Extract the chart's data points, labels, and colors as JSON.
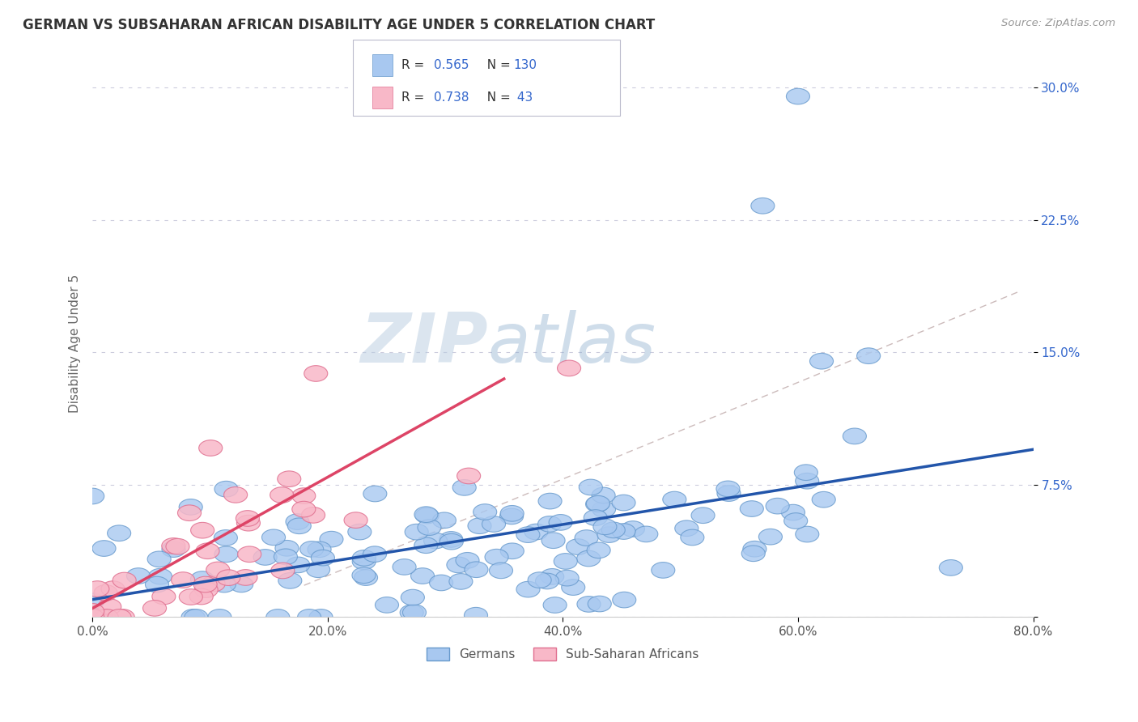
{
  "title": "GERMAN VS SUBSAHARAN AFRICAN DISABILITY AGE UNDER 5 CORRELATION CHART",
  "source": "Source: ZipAtlas.com",
  "xlabel": "",
  "ylabel": "Disability Age Under 5",
  "xlim": [
    0.0,
    0.8
  ],
  "ylim": [
    0.0,
    0.31
  ],
  "xticks": [
    0.0,
    0.2,
    0.4,
    0.6,
    0.8
  ],
  "xtick_labels": [
    "0.0%",
    "20.0%",
    "40.0%",
    "60.0%",
    "80.0%"
  ],
  "yticks": [
    0.0,
    0.075,
    0.15,
    0.225,
    0.3
  ],
  "ytick_labels": [
    "",
    "7.5%",
    "15.0%",
    "22.5%",
    "30.0%"
  ],
  "german_color": "#a8c8f0",
  "german_edge_color": "#6699cc",
  "african_color": "#f8b8c8",
  "african_edge_color": "#e07090",
  "german_line_color": "#2255aa",
  "african_line_color": "#dd4466",
  "dashed_line_color": "#ccbbbb",
  "legend_R1": "0.565",
  "legend_N1": "130",
  "legend_R2": "0.738",
  "legend_N2": " 43",
  "legend_label1": "Germans",
  "legend_label2": "Sub-Saharan Africans",
  "watermark_zip": "ZIP",
  "watermark_atlas": "atlas",
  "background_color": "#ffffff",
  "grid_color": "#ccccdd",
  "title_color": "#333333",
  "axis_label_color": "#666666",
  "tick_color": "#555555",
  "legend_value_color": "#3366cc",
  "seed": 42,
  "german_R": 0.565,
  "german_N": 130,
  "african_R": 0.738,
  "african_N": 43
}
